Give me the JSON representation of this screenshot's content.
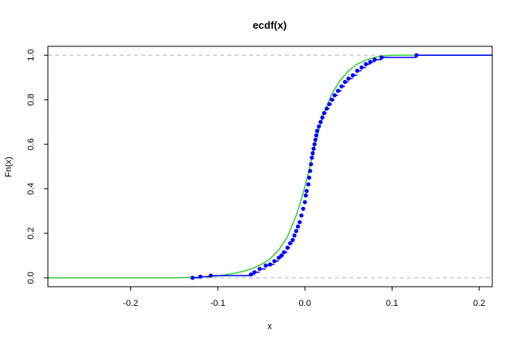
{
  "chart_data": {
    "type": "line",
    "title": "ecdf(x)",
    "xlabel": "x",
    "ylabel": "Fn(x)",
    "xlim": [
      -0.295,
      0.215
    ],
    "ylim": [
      -0.04,
      1.04
    ],
    "x_ticks": [
      -0.2,
      -0.1,
      0.0,
      0.1,
      0.2
    ],
    "x_tick_labels": [
      "-0.2",
      "-0.1",
      "0.0",
      "0.1",
      "0.2"
    ],
    "y_ticks": [
      0.0,
      0.2,
      0.4,
      0.6,
      0.8,
      1.0
    ],
    "y_tick_labels": [
      "0.0",
      "0.2",
      "0.4",
      "0.6",
      "0.8",
      "1.0"
    ],
    "reference_lines": [
      0.0,
      1.0
    ],
    "grid": false,
    "series": [
      {
        "style": "step-points",
        "color": "#0000ff",
        "points": [
          [
            -0.129,
            0.0
          ],
          [
            -0.12,
            0.005
          ],
          [
            -0.108,
            0.01
          ],
          [
            -0.062,
            0.015
          ],
          [
            -0.058,
            0.025
          ],
          [
            -0.052,
            0.04
          ],
          [
            -0.045,
            0.055
          ],
          [
            -0.04,
            0.06
          ],
          [
            -0.035,
            0.075
          ],
          [
            -0.03,
            0.09
          ],
          [
            -0.027,
            0.1
          ],
          [
            -0.024,
            0.115
          ],
          [
            -0.02,
            0.135
          ],
          [
            -0.017,
            0.155
          ],
          [
            -0.014,
            0.17
          ],
          [
            -0.012,
            0.19
          ],
          [
            -0.01,
            0.21
          ],
          [
            -0.008,
            0.23
          ],
          [
            -0.006,
            0.25
          ],
          [
            -0.004,
            0.28
          ],
          [
            -0.002,
            0.31
          ],
          [
            0.0,
            0.34
          ],
          [
            0.001,
            0.37
          ],
          [
            0.002,
            0.39
          ],
          [
            0.004,
            0.42
          ],
          [
            0.005,
            0.45
          ],
          [
            0.006,
            0.48
          ],
          [
            0.007,
            0.51
          ],
          [
            0.008,
            0.54
          ],
          [
            0.009,
            0.56
          ],
          [
            0.01,
            0.58
          ],
          [
            0.011,
            0.6
          ],
          [
            0.012,
            0.62
          ],
          [
            0.013,
            0.64
          ],
          [
            0.014,
            0.66
          ],
          [
            0.016,
            0.68
          ],
          [
            0.018,
            0.7
          ],
          [
            0.02,
            0.72
          ],
          [
            0.022,
            0.74
          ],
          [
            0.025,
            0.76
          ],
          [
            0.028,
            0.78
          ],
          [
            0.031,
            0.8
          ],
          [
            0.034,
            0.82
          ],
          [
            0.038,
            0.84
          ],
          [
            0.042,
            0.86
          ],
          [
            0.046,
            0.88
          ],
          [
            0.05,
            0.895
          ],
          [
            0.055,
            0.91
          ],
          [
            0.06,
            0.93
          ],
          [
            0.065,
            0.945
          ],
          [
            0.07,
            0.96
          ],
          [
            0.075,
            0.97
          ],
          [
            0.08,
            0.98
          ],
          [
            0.088,
            0.99
          ],
          [
            0.128,
            1.0
          ]
        ]
      },
      {
        "style": "line",
        "color": "#33cc33",
        "points": [
          [
            -0.295,
            0.0
          ],
          [
            -0.15,
            0.0
          ],
          [
            -0.14,
            0.001
          ],
          [
            -0.12,
            0.003
          ],
          [
            -0.1,
            0.008
          ],
          [
            -0.09,
            0.014
          ],
          [
            -0.08,
            0.021
          ],
          [
            -0.07,
            0.03
          ],
          [
            -0.06,
            0.042
          ],
          [
            -0.05,
            0.06
          ],
          [
            -0.04,
            0.085
          ],
          [
            -0.03,
            0.125
          ],
          [
            -0.02,
            0.185
          ],
          [
            -0.01,
            0.28
          ],
          [
            -0.005,
            0.34
          ],
          [
            0.0,
            0.41
          ],
          [
            0.005,
            0.49
          ],
          [
            0.01,
            0.57
          ],
          [
            0.015,
            0.65
          ],
          [
            0.02,
            0.72
          ],
          [
            0.03,
            0.82
          ],
          [
            0.04,
            0.885
          ],
          [
            0.05,
            0.93
          ],
          [
            0.06,
            0.96
          ],
          [
            0.07,
            0.978
          ],
          [
            0.08,
            0.99
          ],
          [
            0.09,
            0.997
          ],
          [
            0.1,
            1.0
          ],
          [
            0.215,
            1.0
          ]
        ]
      }
    ]
  }
}
